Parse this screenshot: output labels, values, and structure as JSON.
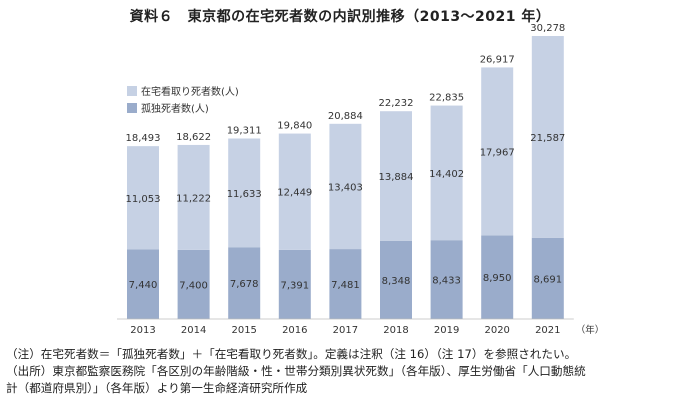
{
  "chart_data": {
    "type": "bar",
    "stacked": true,
    "title": "資料６　東京都の在宅死者数の内訳別推移（2013～2021 年）",
    "categories": [
      "2013",
      "2014",
      "2015",
      "2016",
      "2017",
      "2018",
      "2019",
      "2020",
      "2021"
    ],
    "x_unit": "（年）",
    "series": [
      {
        "name": "孤独死者数(人)",
        "values": [
          7440,
          7400,
          7678,
          7391,
          7481,
          8348,
          8433,
          8950,
          8691
        ],
        "labels": [
          "7,440",
          "7,400",
          "7,678",
          "7,391",
          "7,481",
          "8,348",
          "8,433",
          "8,950",
          "8,691"
        ],
        "color": "#9aaccb"
      },
      {
        "name": "在宅看取り死者数(人)",
        "values": [
          11053,
          11222,
          11633,
          12449,
          13403,
          13884,
          14402,
          17967,
          21587
        ],
        "labels": [
          "11,053",
          "11,222",
          "11,633",
          "12,449",
          "13,403",
          "13,884",
          "14,402",
          "17,967",
          "21,587"
        ],
        "color": "#c6d1e4"
      }
    ],
    "totals": [
      18493,
      18622,
      19311,
      19840,
      20884,
      22232,
      22835,
      26917,
      30278
    ],
    "total_labels": [
      "18,493",
      "18,622",
      "19,311",
      "19,840",
      "20,884",
      "22,232",
      "22,835",
      "26,917",
      "30,278"
    ],
    "legend_position": "top-left",
    "grid": false
  },
  "notes": [
    "（注）在宅死者数＝「孤独死者数」＋「在宅看取り死者数」。定義は注釈（注 16）（注 17）を参照されたい。",
    "（出所）東京都監察医務院「各区別の年齢階級・性・世帯分類別異状死数」（各年版）、厚生労働省「人口動態統",
    "計（都道府県別）」（各年版）より第一生命経済研究所作成"
  ]
}
